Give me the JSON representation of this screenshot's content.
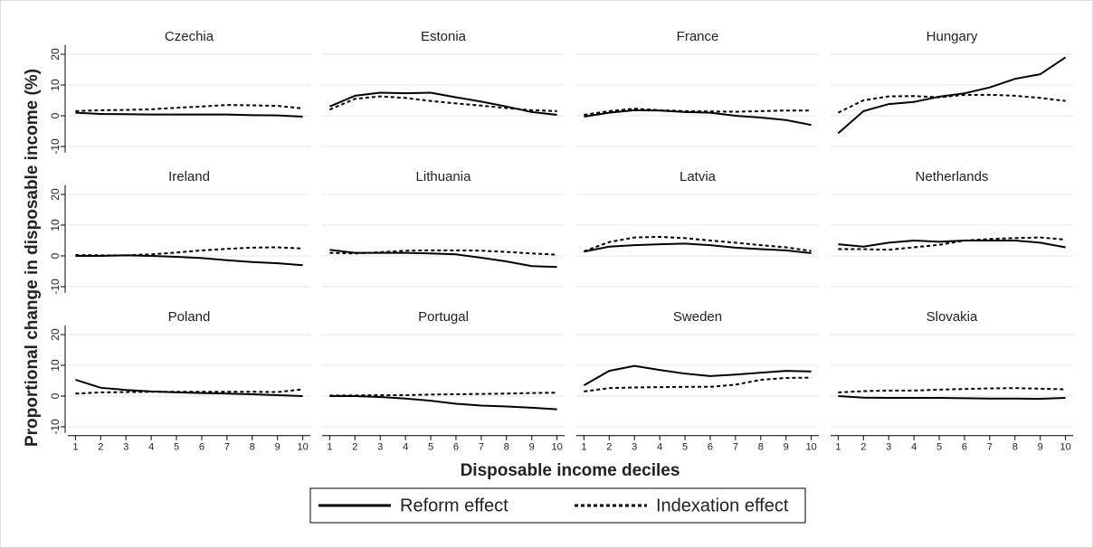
{
  "chart_data": {
    "type": "line",
    "x_label": "Disposable income deciles",
    "y_label": "Proportional change in disposable income (%)",
    "x": [
      1,
      2,
      3,
      4,
      5,
      6,
      7,
      8,
      9,
      10
    ],
    "xlim": [
      0.7,
      10.3
    ],
    "xticks": [
      1,
      2,
      3,
      4,
      5,
      6,
      7,
      8,
      9,
      10
    ],
    "ylim": [
      -12,
      23
    ],
    "yticks": [
      -10,
      0,
      10,
      20
    ],
    "grid": true,
    "series": [
      {
        "name": "Reform effect",
        "color": "#000000",
        "dash": "solid"
      },
      {
        "name": "Indexation effect",
        "color": "#000000",
        "dash": "dotted"
      }
    ],
    "panels": [
      {
        "title": "Czechia",
        "series": [
          {
            "values": [
              1,
              0.6,
              0.5,
              0.4,
              0.4,
              0.4,
              0.4,
              0.2,
              0.1,
              -0.3
            ]
          },
          {
            "values": [
              1.5,
              1.8,
              1.9,
              2.1,
              2.6,
              3,
              3.5,
              3.4,
              3.2,
              2.4
            ]
          }
        ]
      },
      {
        "title": "Estonia",
        "series": [
          {
            "values": [
              3,
              6.5,
              7.5,
              7.3,
              7.5,
              6,
              4.6,
              3,
              1.2,
              0.3
            ]
          },
          {
            "values": [
              2,
              5.5,
              6.3,
              5.8,
              4.8,
              4,
              3.3,
              2.5,
              1.8,
              1.5
            ]
          }
        ]
      },
      {
        "title": "France",
        "series": [
          {
            "values": [
              -0.3,
              1,
              1.8,
              1.7,
              1.2,
              1,
              0,
              -0.6,
              -1.4,
              -3
            ]
          },
          {
            "values": [
              0.3,
              1.5,
              2.3,
              1.8,
              1.5,
              1.4,
              1.3,
              1.5,
              1.7,
              1.7
            ]
          }
        ]
      },
      {
        "title": "Hungary",
        "series": [
          {
            "values": [
              -5.7,
              1.5,
              3.8,
              4.5,
              6.2,
              7.3,
              9.2,
              12,
              13.5,
              19
            ]
          },
          {
            "values": [
              1,
              5,
              6.3,
              6.4,
              6,
              6.8,
              6.8,
              6.5,
              5.8,
              4.8
            ]
          }
        ]
      },
      {
        "title": "Ireland",
        "series": [
          {
            "values": [
              0,
              0,
              0.2,
              0,
              -0.3,
              -0.7,
              -1.4,
              -2,
              -2.4,
              -3
            ]
          },
          {
            "values": [
              0.3,
              0.2,
              0.2,
              0.5,
              1.1,
              1.8,
              2.3,
              2.7,
              2.8,
              2.4
            ]
          }
        ]
      },
      {
        "title": "Lithuania",
        "series": [
          {
            "values": [
              2,
              1,
              1,
              1,
              0.8,
              0.5,
              -0.6,
              -1.8,
              -3.3,
              -3.6
            ]
          },
          {
            "values": [
              1,
              0.8,
              1.2,
              1.7,
              1.8,
              1.8,
              1.7,
              1.3,
              0.8,
              0.4
            ]
          }
        ]
      },
      {
        "title": "Latvia",
        "series": [
          {
            "values": [
              1.4,
              3,
              3.5,
              3.8,
              4,
              3.5,
              2.7,
              2.2,
              1.8,
              0.9
            ]
          },
          {
            "values": [
              1.5,
              4.5,
              6,
              6.2,
              5.8,
              5,
              4.3,
              3.5,
              2.8,
              1.6
            ]
          }
        ]
      },
      {
        "title": "Netherlands",
        "series": [
          {
            "values": [
              3.8,
              3,
              4.3,
              5,
              4.6,
              5,
              5,
              5,
              4.3,
              2.8
            ]
          },
          {
            "values": [
              2.2,
              2.2,
              2,
              2.8,
              3.6,
              5,
              5.5,
              5.8,
              6,
              5.3
            ]
          }
        ]
      },
      {
        "title": "Poland",
        "series": [
          {
            "values": [
              5.3,
              2.7,
              2,
              1.5,
              1.2,
              1,
              0.8,
              0.6,
              0.3,
              0
            ]
          },
          {
            "values": [
              0.8,
              1.2,
              1.3,
              1.4,
              1.4,
              1.4,
              1.4,
              1.4,
              1.3,
              2.2
            ]
          }
        ]
      },
      {
        "title": "Portugal",
        "series": [
          {
            "values": [
              0,
              0,
              -0.3,
              -0.8,
              -1.5,
              -2.5,
              -3.1,
              -3.4,
              -3.8,
              -4.3
            ]
          },
          {
            "values": [
              0.2,
              0.2,
              0.3,
              0.3,
              0.5,
              0.6,
              0.7,
              0.8,
              1,
              1.1
            ]
          }
        ]
      },
      {
        "title": "Sweden",
        "series": [
          {
            "values": [
              3.5,
              8.2,
              9.8,
              8.5,
              7.3,
              6.5,
              7,
              7.6,
              8.2,
              8
            ]
          },
          {
            "values": [
              1.5,
              2.6,
              2.8,
              2.9,
              3,
              3,
              3.7,
              5.3,
              5.9,
              6
            ]
          }
        ]
      },
      {
        "title": "Slovakia",
        "series": [
          {
            "values": [
              0,
              -0.5,
              -0.6,
              -0.6,
              -0.6,
              -0.7,
              -0.8,
              -0.8,
              -0.9,
              -0.6
            ]
          },
          {
            "values": [
              1.2,
              1.6,
              1.8,
              1.8,
              2.1,
              2.3,
              2.5,
              2.6,
              2.4,
              2.2
            ]
          }
        ]
      }
    ]
  }
}
